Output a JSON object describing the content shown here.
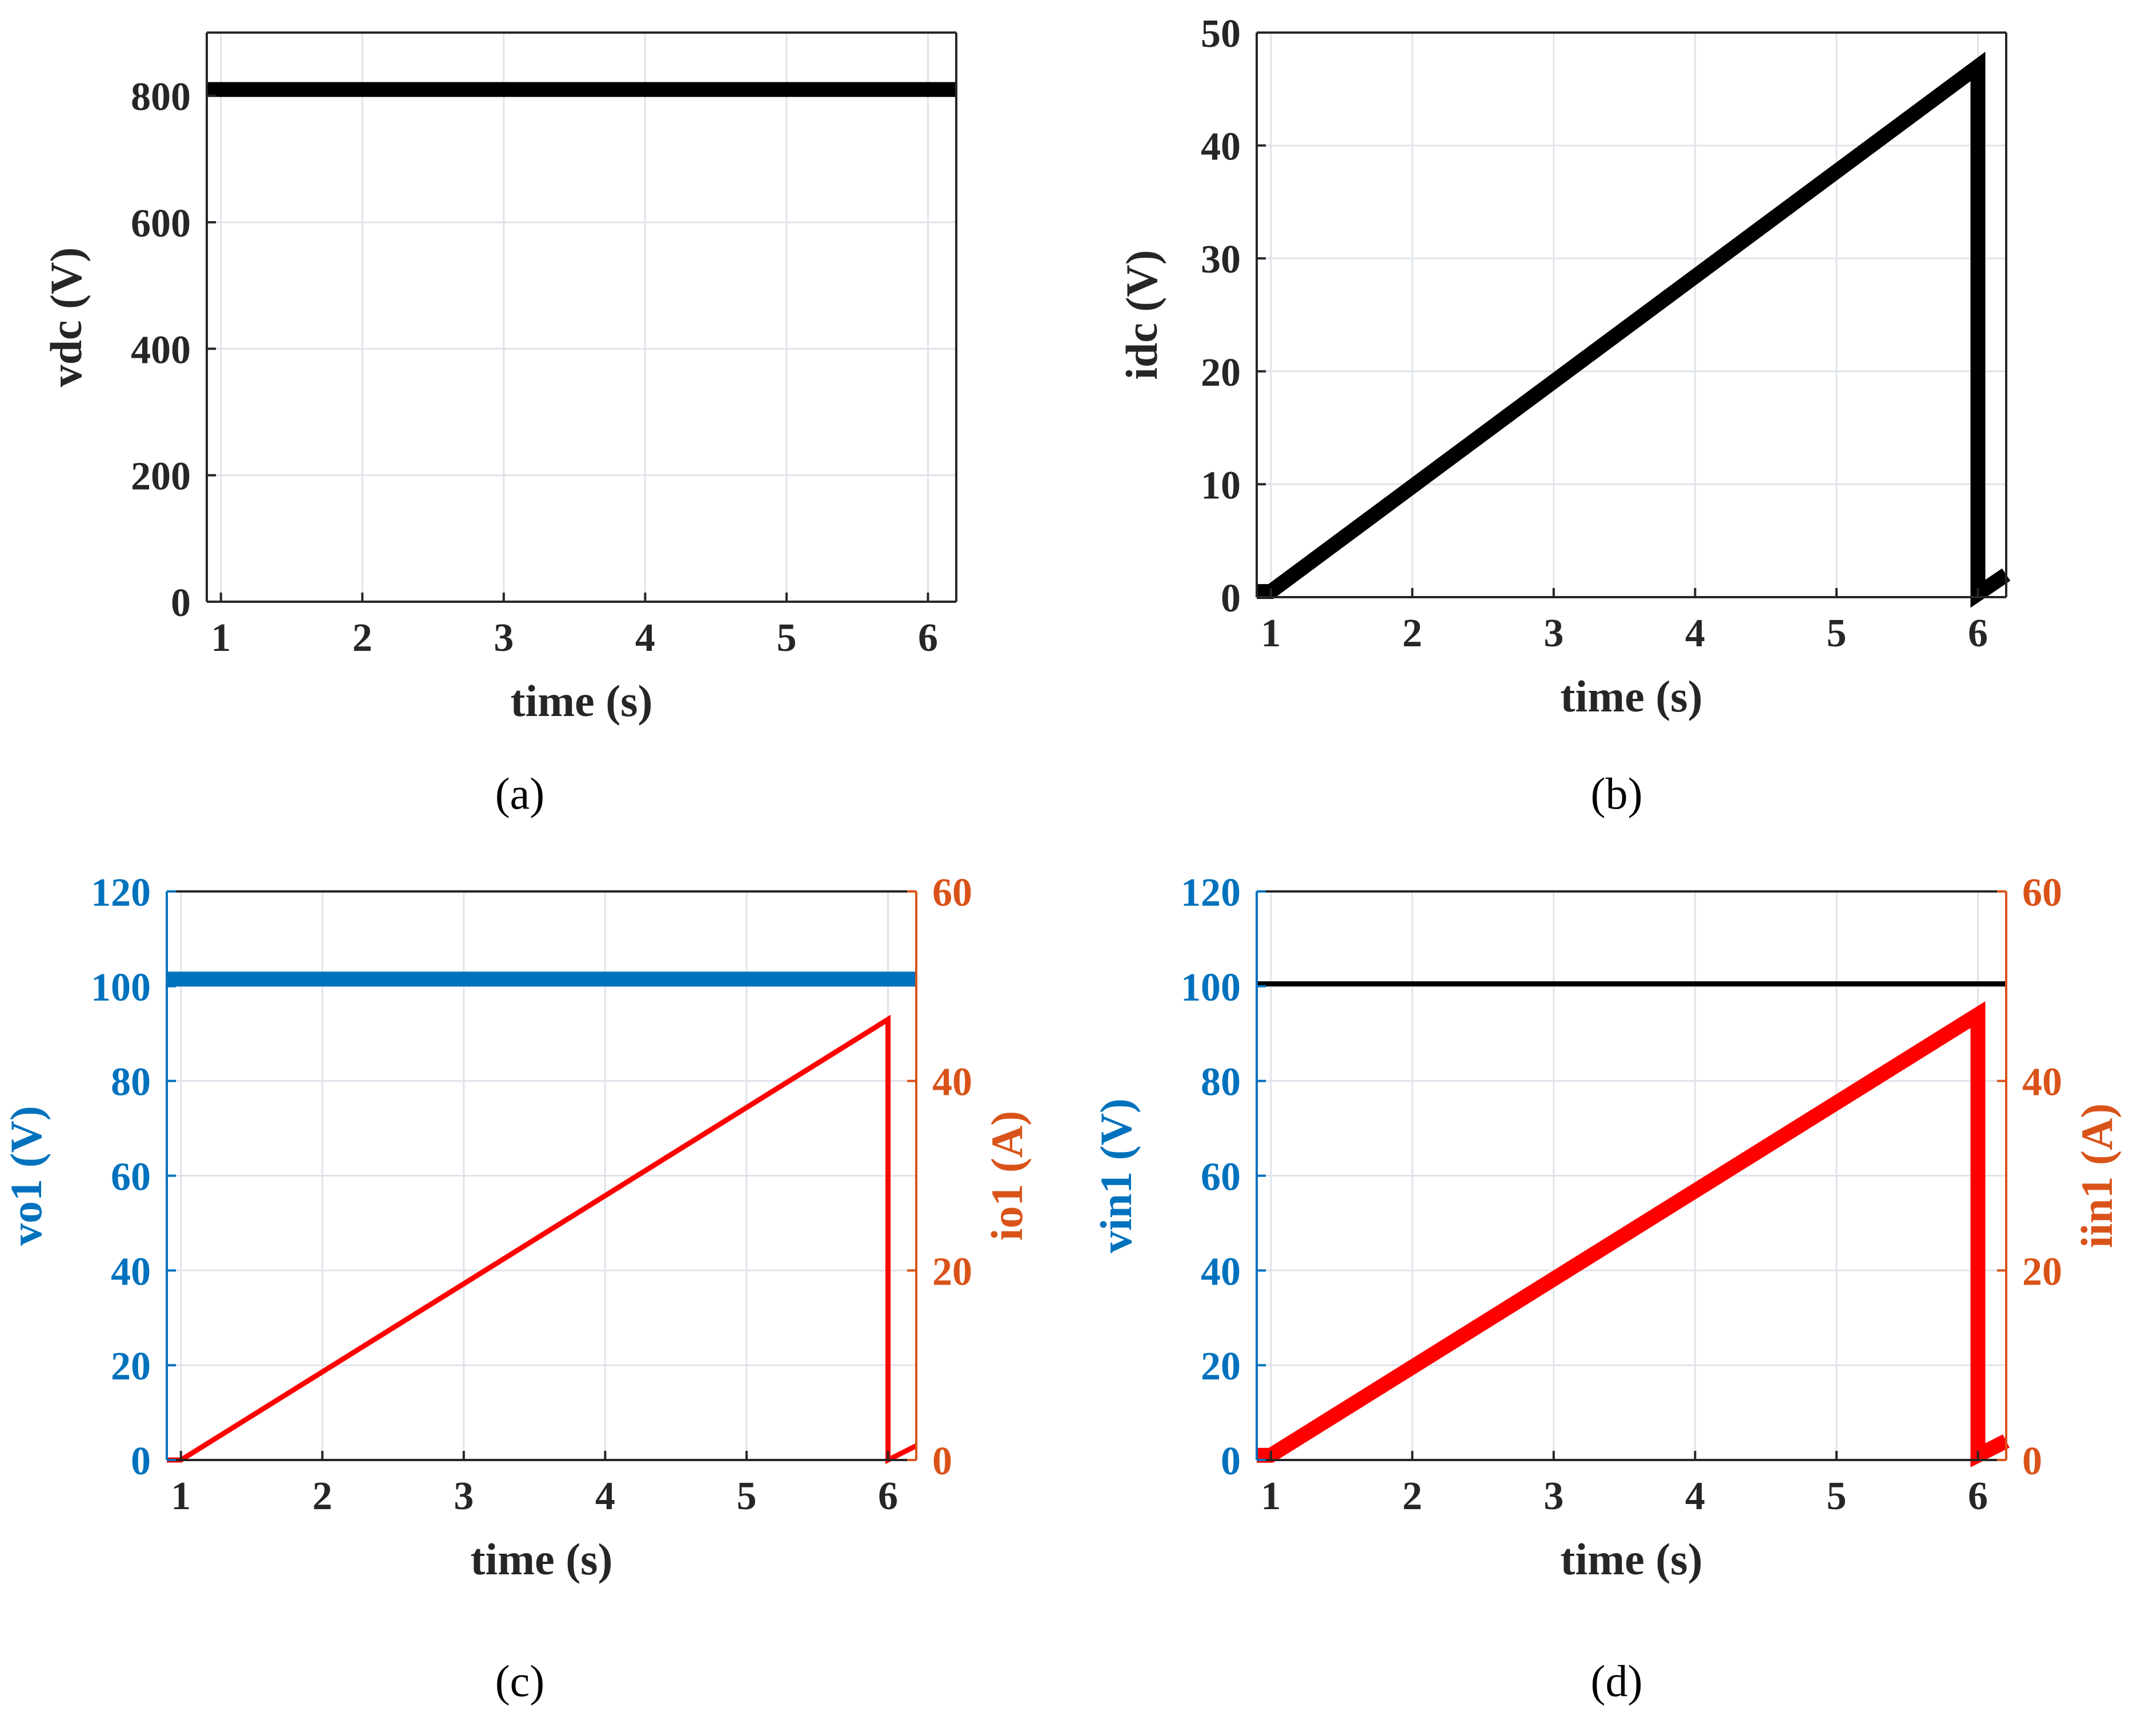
{
  "chart_data": [
    {
      "id": "a",
      "type": "line",
      "caption": "(a)",
      "xlabel": "time (s)",
      "ylabel": "vdc (V)",
      "xlim": [
        0.9,
        6.2
      ],
      "ylim": [
        0,
        900
      ],
      "xticks": [
        1,
        2,
        3,
        4,
        5,
        6
      ],
      "yticks": [
        0,
        200,
        400,
        600,
        800
      ],
      "grid": true,
      "series": [
        {
          "name": "vdc",
          "color": "#000000",
          "thick": true,
          "x": [
            0.9,
            6.2
          ],
          "y": [
            810,
            810
          ]
        }
      ]
    },
    {
      "id": "b",
      "type": "line",
      "caption": "(b)",
      "xlabel": "time (s)",
      "ylabel": "idc (V)",
      "xlim": [
        0.9,
        6.2
      ],
      "ylim": [
        0,
        50
      ],
      "xticks": [
        1,
        2,
        3,
        4,
        5,
        6
      ],
      "yticks": [
        0,
        10,
        20,
        30,
        40,
        50
      ],
      "grid": true,
      "series": [
        {
          "name": "idc",
          "color": "#000000",
          "thick": true,
          "x": [
            0.9,
            1.0,
            6.0,
            6.0,
            6.2
          ],
          "y": [
            0.5,
            0.5,
            47,
            0.3,
            2
          ]
        }
      ]
    },
    {
      "id": "c",
      "type": "line",
      "caption": "(c)",
      "xlabel": "time (s)",
      "ylabel": "vo1 (V)",
      "ylabel_right": "io1 (A)",
      "xlim": [
        0.9,
        6.2
      ],
      "ylim": [
        0,
        120
      ],
      "ylim_right": [
        0,
        60
      ],
      "xticks": [
        1,
        2,
        3,
        4,
        5,
        6
      ],
      "yticks": [
        0,
        20,
        40,
        60,
        80,
        100,
        120
      ],
      "yticks_right": [
        0,
        20,
        40,
        60
      ],
      "left_color": "#0072BD",
      "right_color": "#D95319",
      "grid": true,
      "series": [
        {
          "name": "vo1",
          "color": "#0072BD",
          "thick": true,
          "axis": "left",
          "x": [
            0.9,
            6.2
          ],
          "y": [
            101.5,
            101.5
          ]
        },
        {
          "name": "io1",
          "color": "#FF0000",
          "thick": false,
          "axis": "right",
          "x": [
            0.9,
            1.0,
            6.0,
            6.0,
            6.2
          ],
          "y": [
            0,
            0,
            46.5,
            0,
            1.5
          ]
        }
      ]
    },
    {
      "id": "d",
      "type": "line",
      "caption": "(d)",
      "xlabel": "time (s)",
      "ylabel": "vin1 (V)",
      "ylabel_right": "iin1 (A)",
      "xlim": [
        0.9,
        6.2
      ],
      "ylim": [
        0,
        120
      ],
      "ylim_right": [
        0,
        60
      ],
      "xticks": [
        1,
        2,
        3,
        4,
        5,
        6
      ],
      "yticks": [
        0,
        20,
        40,
        60,
        80,
        100,
        120
      ],
      "yticks_right": [
        0,
        20,
        40,
        60
      ],
      "left_color": "#0072BD",
      "right_color": "#D95319",
      "grid": true,
      "series": [
        {
          "name": "vin1",
          "color": "#000000",
          "thick": false,
          "axis": "left",
          "x": [
            0.9,
            6.2
          ],
          "y": [
            100.5,
            100.5
          ]
        },
        {
          "name": "iin1",
          "color": "#FF0000",
          "thick": true,
          "axis": "right",
          "x": [
            0.9,
            1.0,
            6.0,
            6.0,
            6.2
          ],
          "y": [
            0.5,
            0.5,
            47,
            0.5,
            2
          ]
        }
      ]
    }
  ]
}
